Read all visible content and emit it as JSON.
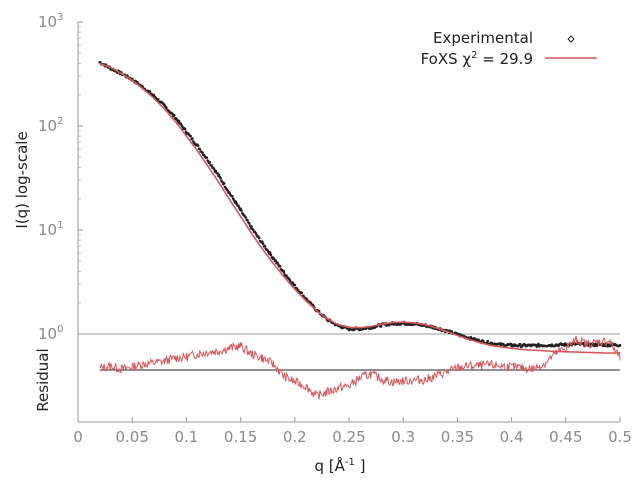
{
  "chart_data": {
    "type": "line",
    "log_scale_y": true,
    "top_panel": {
      "ylabel": "I(q) log-scale",
      "ylim": [
        1,
        1000
      ],
      "y_ticks": [
        {
          "base": "10",
          "exp": "0"
        },
        {
          "base": "10",
          "exp": "1"
        },
        {
          "base": "10",
          "exp": "2"
        },
        {
          "base": "10",
          "exp": "3"
        }
      ],
      "series": [
        {
          "name": "Experimental",
          "style": "points",
          "color": "#222222",
          "x": [
            0.02,
            0.03,
            0.04,
            0.05,
            0.06,
            0.07,
            0.08,
            0.09,
            0.1,
            0.11,
            0.12,
            0.13,
            0.14,
            0.15,
            0.16,
            0.17,
            0.18,
            0.19,
            0.2,
            0.21,
            0.22,
            0.23,
            0.24,
            0.25,
            0.26,
            0.27,
            0.28,
            0.29,
            0.3,
            0.31,
            0.32,
            0.33,
            0.34,
            0.35,
            0.36,
            0.37,
            0.38,
            0.39,
            0.4,
            0.41,
            0.42,
            0.43,
            0.44,
            0.45,
            0.46,
            0.47,
            0.48,
            0.49,
            0.5
          ],
          "y": [
            410,
            360,
            320,
            280,
            235,
            195,
            155,
            120,
            88,
            65,
            47,
            33,
            22.5,
            15.5,
            10.5,
            7.5,
            5.4,
            3.9,
            2.9,
            2.2,
            1.7,
            1.38,
            1.2,
            1.12,
            1.12,
            1.16,
            1.22,
            1.26,
            1.27,
            1.25,
            1.21,
            1.15,
            1.07,
            0.99,
            0.92,
            0.86,
            0.82,
            0.79,
            0.78,
            0.775,
            0.775,
            0.78,
            0.785,
            0.79,
            0.8,
            0.79,
            0.79,
            0.785,
            0.785
          ]
        },
        {
          "name": "FoXS χ² = 29.9",
          "style": "line",
          "color": "#d9575a",
          "x": [
            0.02,
            0.03,
            0.04,
            0.05,
            0.06,
            0.07,
            0.08,
            0.09,
            0.1,
            0.11,
            0.12,
            0.13,
            0.14,
            0.15,
            0.16,
            0.17,
            0.18,
            0.19,
            0.2,
            0.21,
            0.22,
            0.23,
            0.24,
            0.25,
            0.26,
            0.27,
            0.28,
            0.29,
            0.3,
            0.31,
            0.32,
            0.33,
            0.34,
            0.35,
            0.36,
            0.37,
            0.38,
            0.39,
            0.4,
            0.41,
            0.42,
            0.43,
            0.44,
            0.45,
            0.46,
            0.47,
            0.48,
            0.49,
            0.5
          ],
          "y": [
            400,
            365,
            320,
            275,
            228,
            185,
            145,
            110,
            80,
            58,
            41,
            28.5,
            19.5,
            13.5,
            9.3,
            6.6,
            4.8,
            3.55,
            2.7,
            2.1,
            1.68,
            1.4,
            1.23,
            1.16,
            1.15,
            1.18,
            1.24,
            1.29,
            1.3,
            1.28,
            1.23,
            1.15,
            1.06,
            0.97,
            0.89,
            0.83,
            0.78,
            0.75,
            0.73,
            0.71,
            0.7,
            0.69,
            0.68,
            0.675,
            0.67,
            0.665,
            0.66,
            0.655,
            0.66
          ]
        }
      ]
    },
    "bottom_panel": {
      "ylabel": "Residual",
      "zero_line": true,
      "series": [
        {
          "name": "residual",
          "color": "#d9575a",
          "x": [
            0.02,
            0.03,
            0.04,
            0.05,
            0.06,
            0.07,
            0.08,
            0.09,
            0.1,
            0.11,
            0.12,
            0.13,
            0.14,
            0.15,
            0.16,
            0.17,
            0.18,
            0.19,
            0.2,
            0.21,
            0.22,
            0.23,
            0.24,
            0.25,
            0.26,
            0.27,
            0.28,
            0.29,
            0.3,
            0.31,
            0.32,
            0.33,
            0.34,
            0.35,
            0.36,
            0.37,
            0.38,
            0.39,
            0.4,
            0.41,
            0.42,
            0.43,
            0.44,
            0.45,
            0.46,
            0.47,
            0.48,
            0.49,
            0.5
          ],
          "y": [
            0.2,
            0.4,
            0.1,
            0.3,
            0.6,
            0.7,
            0.9,
            1.2,
            1.3,
            1.6,
            1.8,
            1.9,
            2.2,
            2.4,
            1.6,
            1.2,
            0.6,
            -0.6,
            -1.2,
            -1.6,
            -2.6,
            -2.2,
            -1.8,
            -1.6,
            -0.8,
            -0.4,
            -0.9,
            -1.2,
            -1.1,
            -1.0,
            -1.0,
            -0.6,
            -0.2,
            0.2,
            0.4,
            0.4,
            0.5,
            0.4,
            0.3,
            0.2,
            0.1,
            0.6,
            1.6,
            2.2,
            3.0,
            2.6,
            2.8,
            2.9,
            1.2
          ]
        }
      ]
    },
    "xlabel": "q [Å⁻¹]",
    "xlabel_main": "q [Å",
    "xlabel_sup": "-1",
    "xlabel_end": " ]",
    "xlim": [
      0,
      0.5
    ],
    "x_ticks": [
      "0",
      "0.05",
      "0.1",
      "0.15",
      "0.2",
      "0.25",
      "0.3",
      "0.35",
      "0.4",
      "0.45",
      "0.5"
    ],
    "legend": {
      "placement": "top-right",
      "entries": [
        {
          "label": "Experimental"
        },
        {
          "label_main": "FoXS χ",
          "label_sup": "2",
          "label_end": " = 29.9"
        }
      ]
    }
  }
}
